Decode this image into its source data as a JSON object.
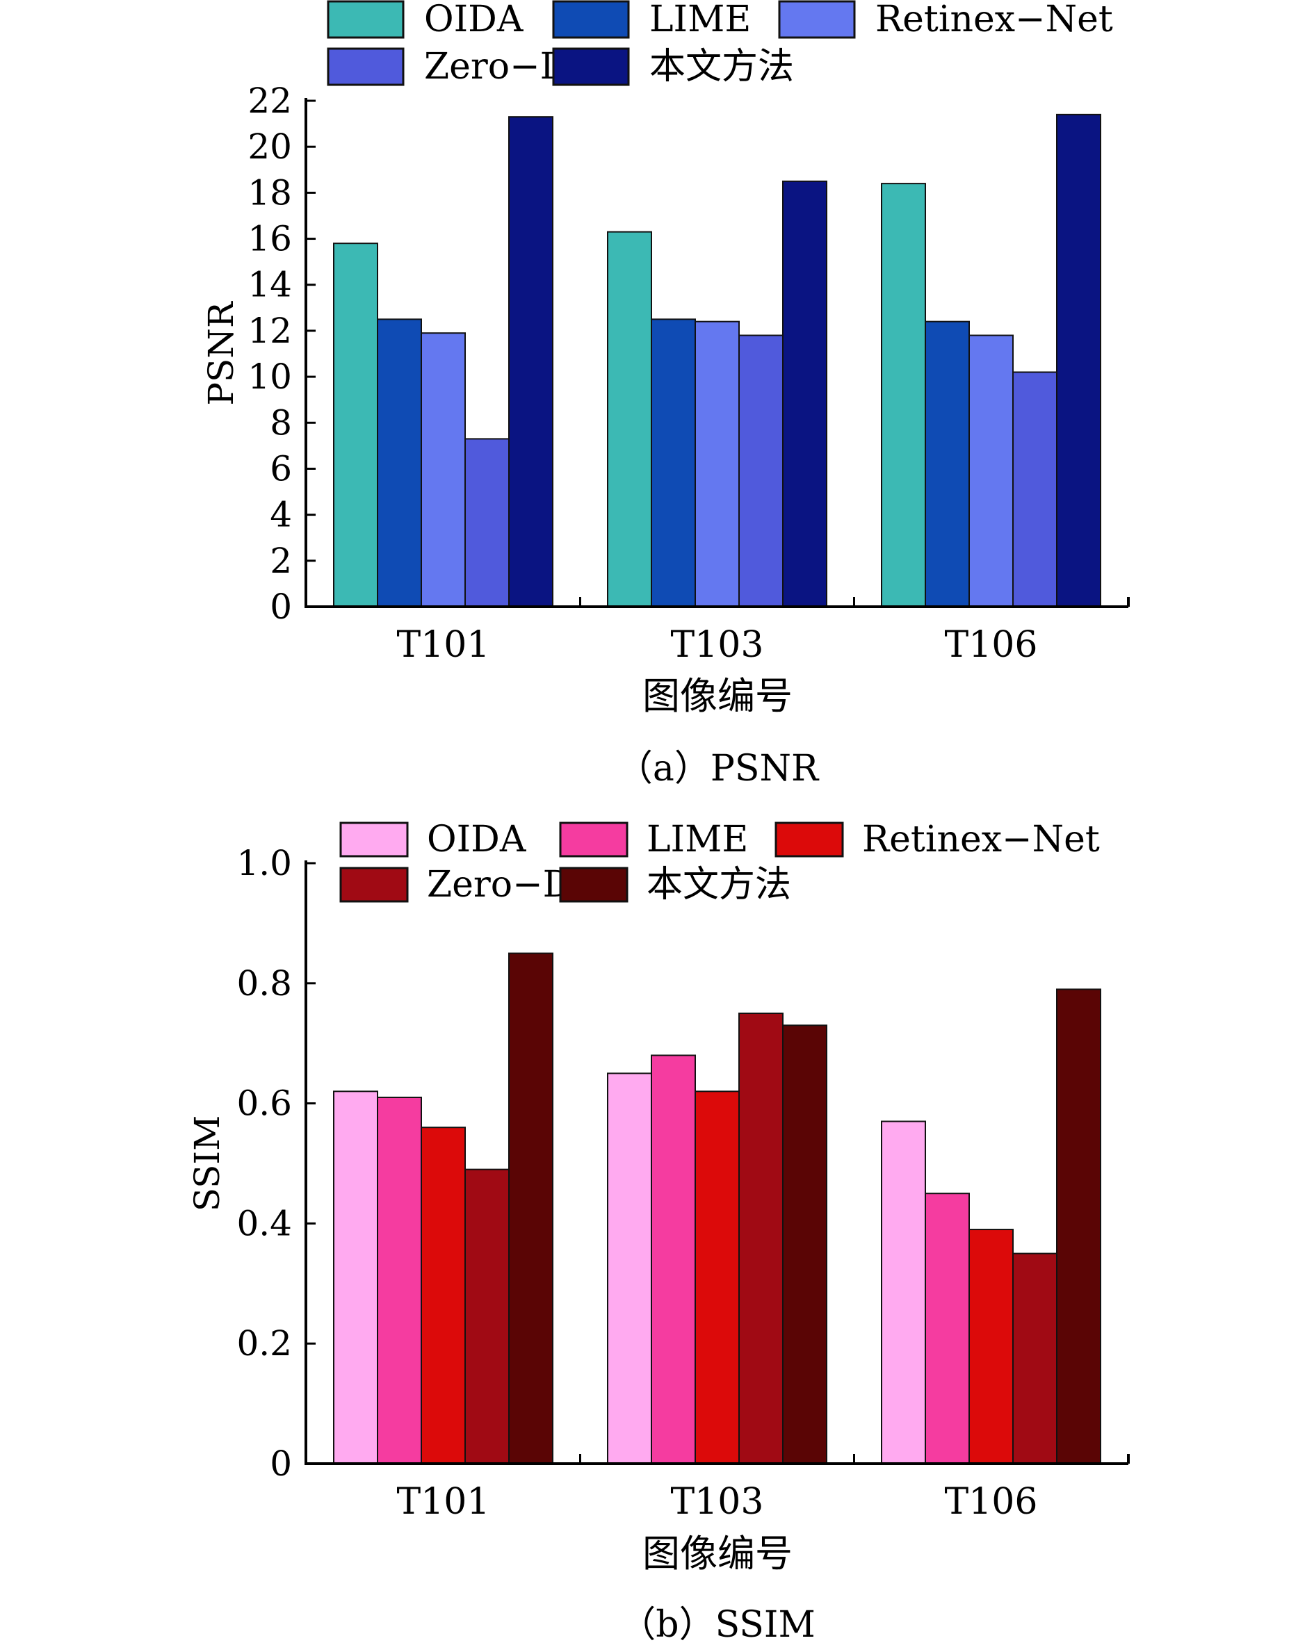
{
  "chart_data": [
    {
      "type": "bar",
      "caption": "（a）PSNR",
      "xlabel": "图像编号",
      "ylabel": "PSNR",
      "ylim": [
        0,
        22
      ],
      "yticks": [
        0,
        2,
        4,
        6,
        8,
        10,
        12,
        14,
        16,
        18,
        20,
        22
      ],
      "ytick_labels": [
        "0",
        "2",
        "4",
        "6",
        "8",
        "10",
        "12",
        "14",
        "16",
        "18",
        "20",
        "22"
      ],
      "grid": false,
      "legend_position": "top",
      "categories": [
        "T101",
        "T103",
        "T106"
      ],
      "series": [
        {
          "name": "OIDA",
          "color": "#3cb9b4",
          "values": [
            15.8,
            16.3,
            18.4
          ]
        },
        {
          "name": "LIME",
          "color": "#0f4bb4",
          "values": [
            12.5,
            12.5,
            12.4
          ]
        },
        {
          "name": "Retinex−Net",
          "color": "#6478f0",
          "values": [
            11.9,
            12.4,
            11.8
          ]
        },
        {
          "name": "Zero−DCE",
          "color": "#505adc",
          "values": [
            7.3,
            11.8,
            10.2
          ]
        },
        {
          "name": "本文方法",
          "color": "#0a1482",
          "values": [
            21.3,
            18.5,
            21.4
          ]
        }
      ]
    },
    {
      "type": "bar",
      "caption": "（b）SSIM",
      "xlabel": "图像编号",
      "ylabel": "SSIM",
      "ylim": [
        0,
        1.0
      ],
      "yticks": [
        0,
        0.2,
        0.4,
        0.6,
        0.8,
        1.0
      ],
      "ytick_labels": [
        "0",
        "0.2",
        "0.4",
        "0.6",
        "0.8",
        "1.0"
      ],
      "grid": false,
      "legend_position": "top",
      "categories": [
        "T101",
        "T103",
        "T106"
      ],
      "series": [
        {
          "name": "OIDA",
          "color": "#ffaaf0",
          "values": [
            0.62,
            0.65,
            0.57
          ]
        },
        {
          "name": "LIME",
          "color": "#f53ca0",
          "values": [
            0.61,
            0.68,
            0.45
          ]
        },
        {
          "name": "Retinex−Net",
          "color": "#dc0a0a",
          "values": [
            0.56,
            0.62,
            0.39
          ]
        },
        {
          "name": "Zero−DCE",
          "color": "#a00a14",
          "values": [
            0.49,
            0.75,
            0.35
          ]
        },
        {
          "name": "本文方法",
          "color": "#5a0505",
          "values": [
            0.85,
            0.73,
            0.79
          ]
        }
      ]
    }
  ]
}
